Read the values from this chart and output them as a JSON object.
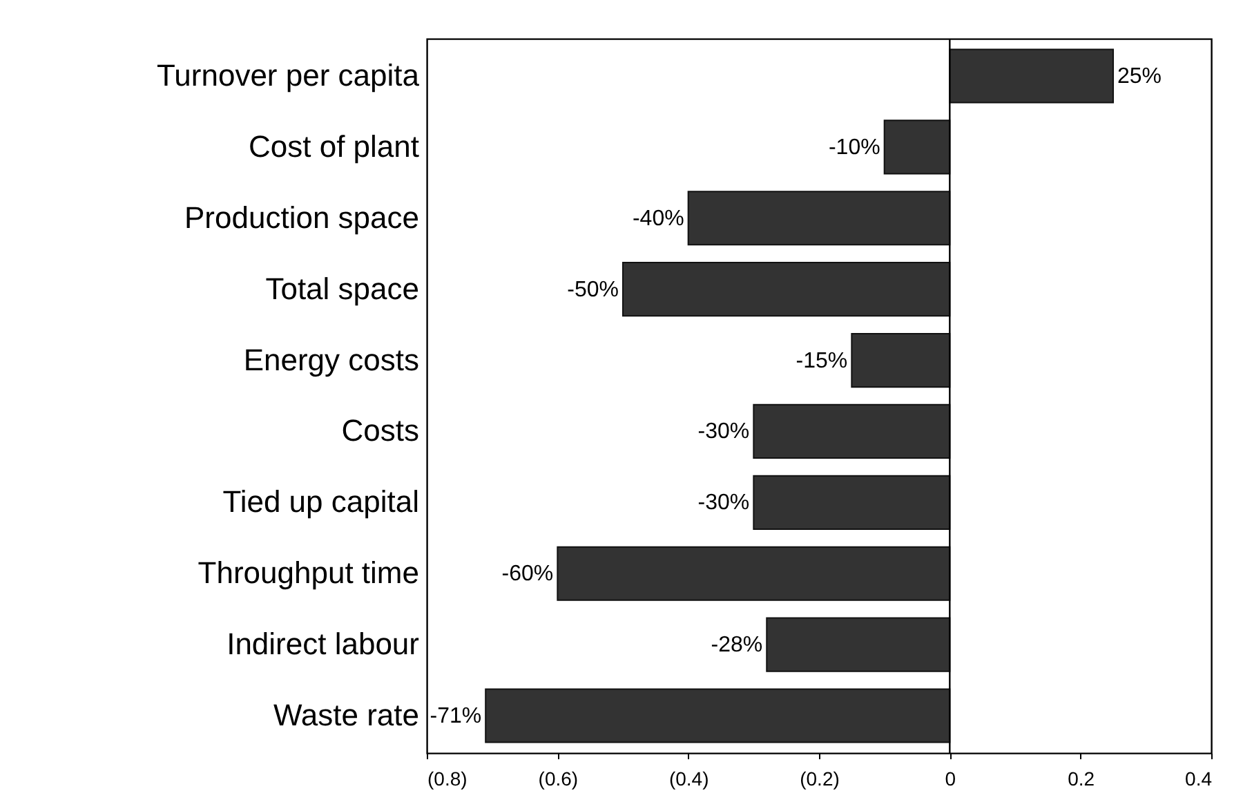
{
  "chart_data": {
    "type": "bar",
    "orientation": "horizontal",
    "categories": [
      "Turnover per capita",
      "Cost of plant",
      "Production space",
      "Total space",
      "Energy costs",
      "Costs",
      "Tied up capital",
      "Throughput time",
      "Indirect labour",
      "Waste rate"
    ],
    "values": [
      0.25,
      -0.1,
      -0.4,
      -0.5,
      -0.15,
      -0.3,
      -0.3,
      -0.6,
      -0.28,
      -0.71
    ],
    "value_labels": [
      "25%",
      "-10%",
      "-40%",
      "-50%",
      "-15%",
      "-30%",
      "-30%",
      "-60%",
      "-28%",
      "-71%"
    ],
    "color": "#333333",
    "xlim": [
      -0.8,
      0.4
    ],
    "xticks": [
      {
        "value": -0.8,
        "label": "(0.8)"
      },
      {
        "value": -0.6,
        "label": "(0.6)"
      },
      {
        "value": -0.4,
        "label": "(0.4)"
      },
      {
        "value": -0.2,
        "label": "(0.2)"
      },
      0,
      0.2,
      0.4
    ],
    "ref_lines": [
      {
        "axis": "x",
        "value": 0,
        "color": "#000000"
      }
    ],
    "grid": false
  }
}
